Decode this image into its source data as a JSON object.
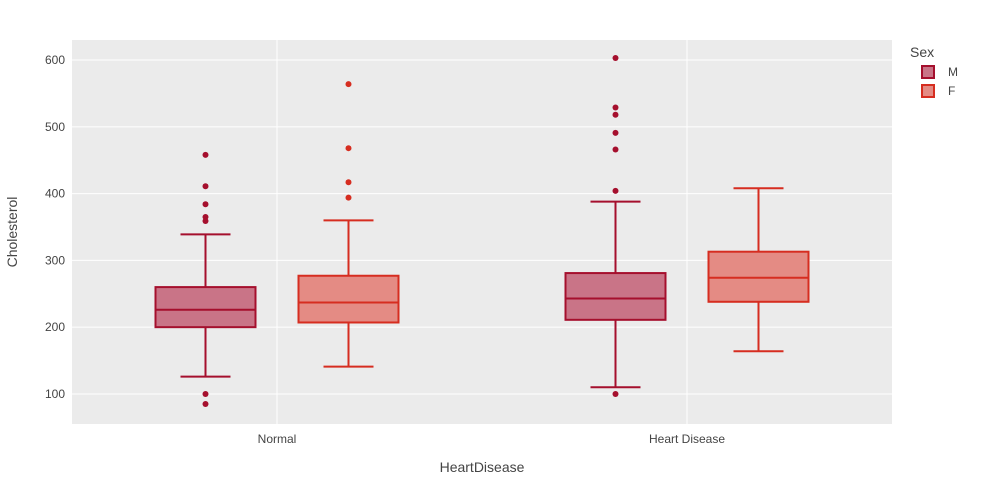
{
  "chart_data": {
    "type": "box",
    "xlabel": "HeartDisease",
    "ylabel": "Cholesterol",
    "categories": [
      "Normal",
      "Heart Disease"
    ],
    "ylim": [
      55,
      630
    ],
    "yticks": [
      100,
      200,
      300,
      400,
      500,
      600
    ],
    "grid": true,
    "legend": {
      "title": "Sex",
      "position": "top-right"
    },
    "series": [
      {
        "name": "M",
        "color": "#a50f2d",
        "fill": "#c97487",
        "boxes": [
          {
            "category": "Normal",
            "lowerfence": 126,
            "q1": 200,
            "median": 226,
            "q3": 260,
            "upperfence": 339,
            "outliers": [
              458,
              411,
              384,
              365,
              359,
              100,
              85
            ]
          },
          {
            "category": "Heart Disease",
            "lowerfence": 110,
            "q1": 211,
            "median": 243,
            "q3": 281,
            "upperfence": 388,
            "outliers": [
              603,
              529,
              518,
              491,
              466,
              404,
              100
            ]
          }
        ]
      },
      {
        "name": "F",
        "color": "#d62d20",
        "fill": "#e48b84",
        "boxes": [
          {
            "category": "Normal",
            "lowerfence": 141,
            "q1": 207,
            "median": 237,
            "q3": 277,
            "upperfence": 360,
            "outliers": [
              564,
              468,
              417,
              394
            ]
          },
          {
            "category": "Heart Disease",
            "lowerfence": 164,
            "q1": 238,
            "median": 274,
            "q3": 313,
            "upperfence": 408,
            "outliers": []
          }
        ]
      }
    ]
  }
}
